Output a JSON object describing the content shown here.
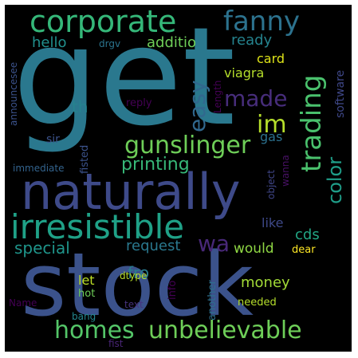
{
  "words": [
    {
      "text": "get",
      "color": "#2a788e"
    },
    {
      "text": "stock",
      "color": "#3b528b"
    },
    {
      "text": "naturally",
      "color": "#3e4a89"
    },
    {
      "text": "corporate",
      "color": "#35b779"
    },
    {
      "text": "irresistible",
      "color": "#1fa187"
    },
    {
      "text": "fanny",
      "color": "#2c728e"
    },
    {
      "text": "trading",
      "color": "#4ac16d"
    },
    {
      "text": "easy",
      "color": "#31688e"
    },
    {
      "text": "made",
      "color": "#472d7b"
    },
    {
      "text": "im",
      "color": "#b5de2b"
    },
    {
      "text": "gunslinger",
      "color": "#6ece58"
    },
    {
      "text": "color",
      "color": "#1f9e89"
    },
    {
      "text": "unbelievable",
      "color": "#6ece58"
    },
    {
      "text": "homes",
      "color": "#54c568"
    },
    {
      "text": "wa",
      "color": "#482878"
    },
    {
      "text": "printing",
      "color": "#37b878"
    },
    {
      "text": "special",
      "color": "#1f958b"
    },
    {
      "text": "request",
      "color": "#2a788e"
    },
    {
      "text": "hello",
      "color": "#21908d"
    },
    {
      "text": "additio",
      "color": "#6ece58"
    },
    {
      "text": "ready",
      "color": "#25838e"
    },
    {
      "text": "card",
      "color": "#dde318"
    },
    {
      "text": "viagra",
      "color": "#b5de2b"
    },
    {
      "text": "th",
      "color": "#26828e"
    },
    {
      "text": "reply",
      "color": "#440154"
    },
    {
      "text": "gas",
      "color": "#2c718e"
    },
    {
      "text": "sir",
      "color": "#3b528b"
    },
    {
      "text": "immediate",
      "color": "#33638d"
    },
    {
      "text": "fisted",
      "color": "#3b528b"
    },
    {
      "text": "like",
      "color": "#3e4989"
    },
    {
      "text": "cds",
      "color": "#22a785"
    },
    {
      "text": "would",
      "color": "#8fd744"
    },
    {
      "text": "dear",
      "color": "#fde725"
    },
    {
      "text": "fro",
      "color": "#297b8e"
    },
    {
      "text": "let",
      "color": "#bddf26"
    },
    {
      "text": "money",
      "color": "#a2da37"
    },
    {
      "text": "dtype",
      "color": "#b8de29"
    },
    {
      "text": "hot",
      "color": "#6ece58"
    },
    {
      "text": "text",
      "color": "#46337e"
    },
    {
      "text": "info",
      "color": "#440154"
    },
    {
      "text": "another",
      "color": "#2e6f8e"
    },
    {
      "text": "needed",
      "color": "#b5de2b"
    },
    {
      "text": "bang",
      "color": "#24878e"
    },
    {
      "text": "Name",
      "color": "#440154"
    },
    {
      "text": "fist",
      "color": "#482475"
    },
    {
      "text": "software",
      "color": "#3f4889"
    },
    {
      "text": "announcesee",
      "color": "#3b528b"
    },
    {
      "text": "drgv",
      "color": "#2b748e"
    },
    {
      "text": "Length",
      "color": "#440154"
    },
    {
      "text": "wanna",
      "color": "#471164"
    },
    {
      "text": "object",
      "color": "#404688"
    }
  ]
}
